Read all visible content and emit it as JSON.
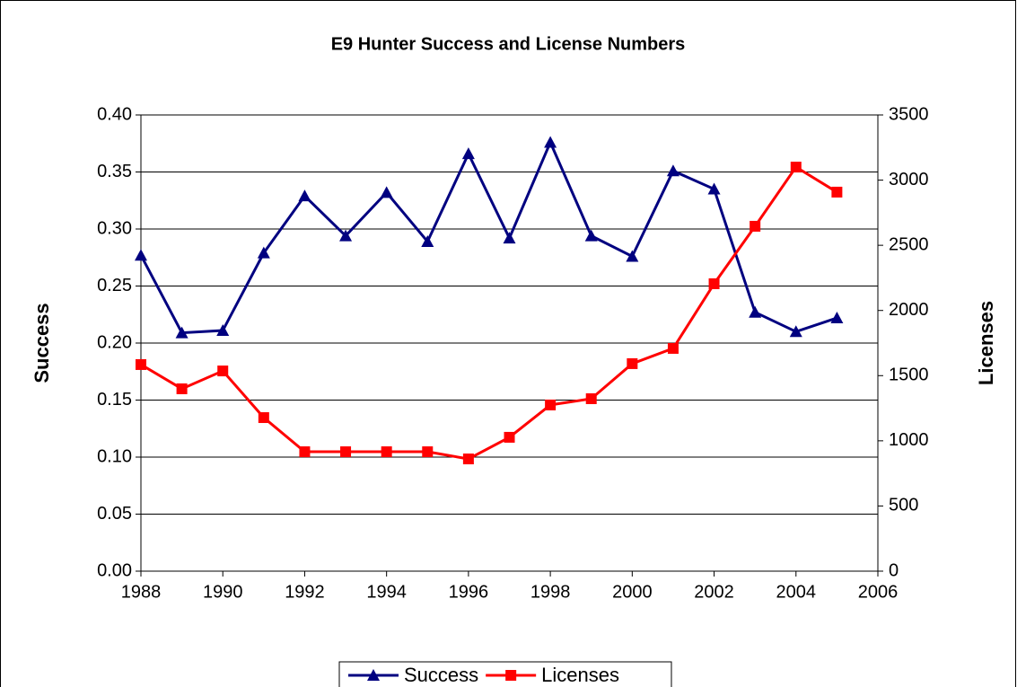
{
  "chart_data": {
    "type": "line",
    "title": "E9 Hunter Success and License Numbers",
    "y_label": "Success",
    "y2_label": "Licenses",
    "x": [
      1988,
      1989,
      1990,
      1991,
      1992,
      1993,
      1994,
      1995,
      1996,
      1997,
      1998,
      1999,
      2000,
      2001,
      2002,
      2003,
      2004,
      2005
    ],
    "xlim": [
      1988,
      2006
    ],
    "xticks": [
      1988,
      1990,
      1992,
      1994,
      1996,
      1998,
      2000,
      2002,
      2004,
      2006
    ],
    "ylim": [
      0,
      0.4
    ],
    "yticks": [
      {
        "value": 0,
        "label": "0.00"
      },
      0.05,
      {
        "value": 0.1,
        "label": "0.10"
      },
      0.15,
      {
        "value": 0.2,
        "label": "0.20"
      },
      0.25,
      {
        "value": 0.3,
        "label": "0.30"
      },
      0.35,
      {
        "value": 0.4,
        "label": "0.40"
      }
    ],
    "y2lim": [
      0,
      3500
    ],
    "y2ticks": [
      0,
      500,
      1000,
      1500,
      2000,
      2500,
      3000,
      3500
    ],
    "grid": true,
    "legend": "bottom",
    "series": [
      {
        "name": "Success",
        "color": "#000080",
        "marker": "triangle",
        "values": [
          0.277,
          0.209,
          0.211,
          0.279,
          0.329,
          0.294,
          0.332,
          0.289,
          0.366,
          0.292,
          0.376,
          0.294,
          0.276,
          0.351,
          0.335,
          0.227,
          0.21,
          0.222
        ]
      },
      {
        "name": "Licenses",
        "color": "#ff0000",
        "marker": "square",
        "axis": "y2",
        "values": [
          1585,
          1399,
          1536,
          1178,
          916,
          916,
          916,
          916,
          861,
          1027,
          1275,
          1323,
          1592,
          1709,
          2205,
          2646,
          3100,
          2908
        ]
      }
    ]
  }
}
